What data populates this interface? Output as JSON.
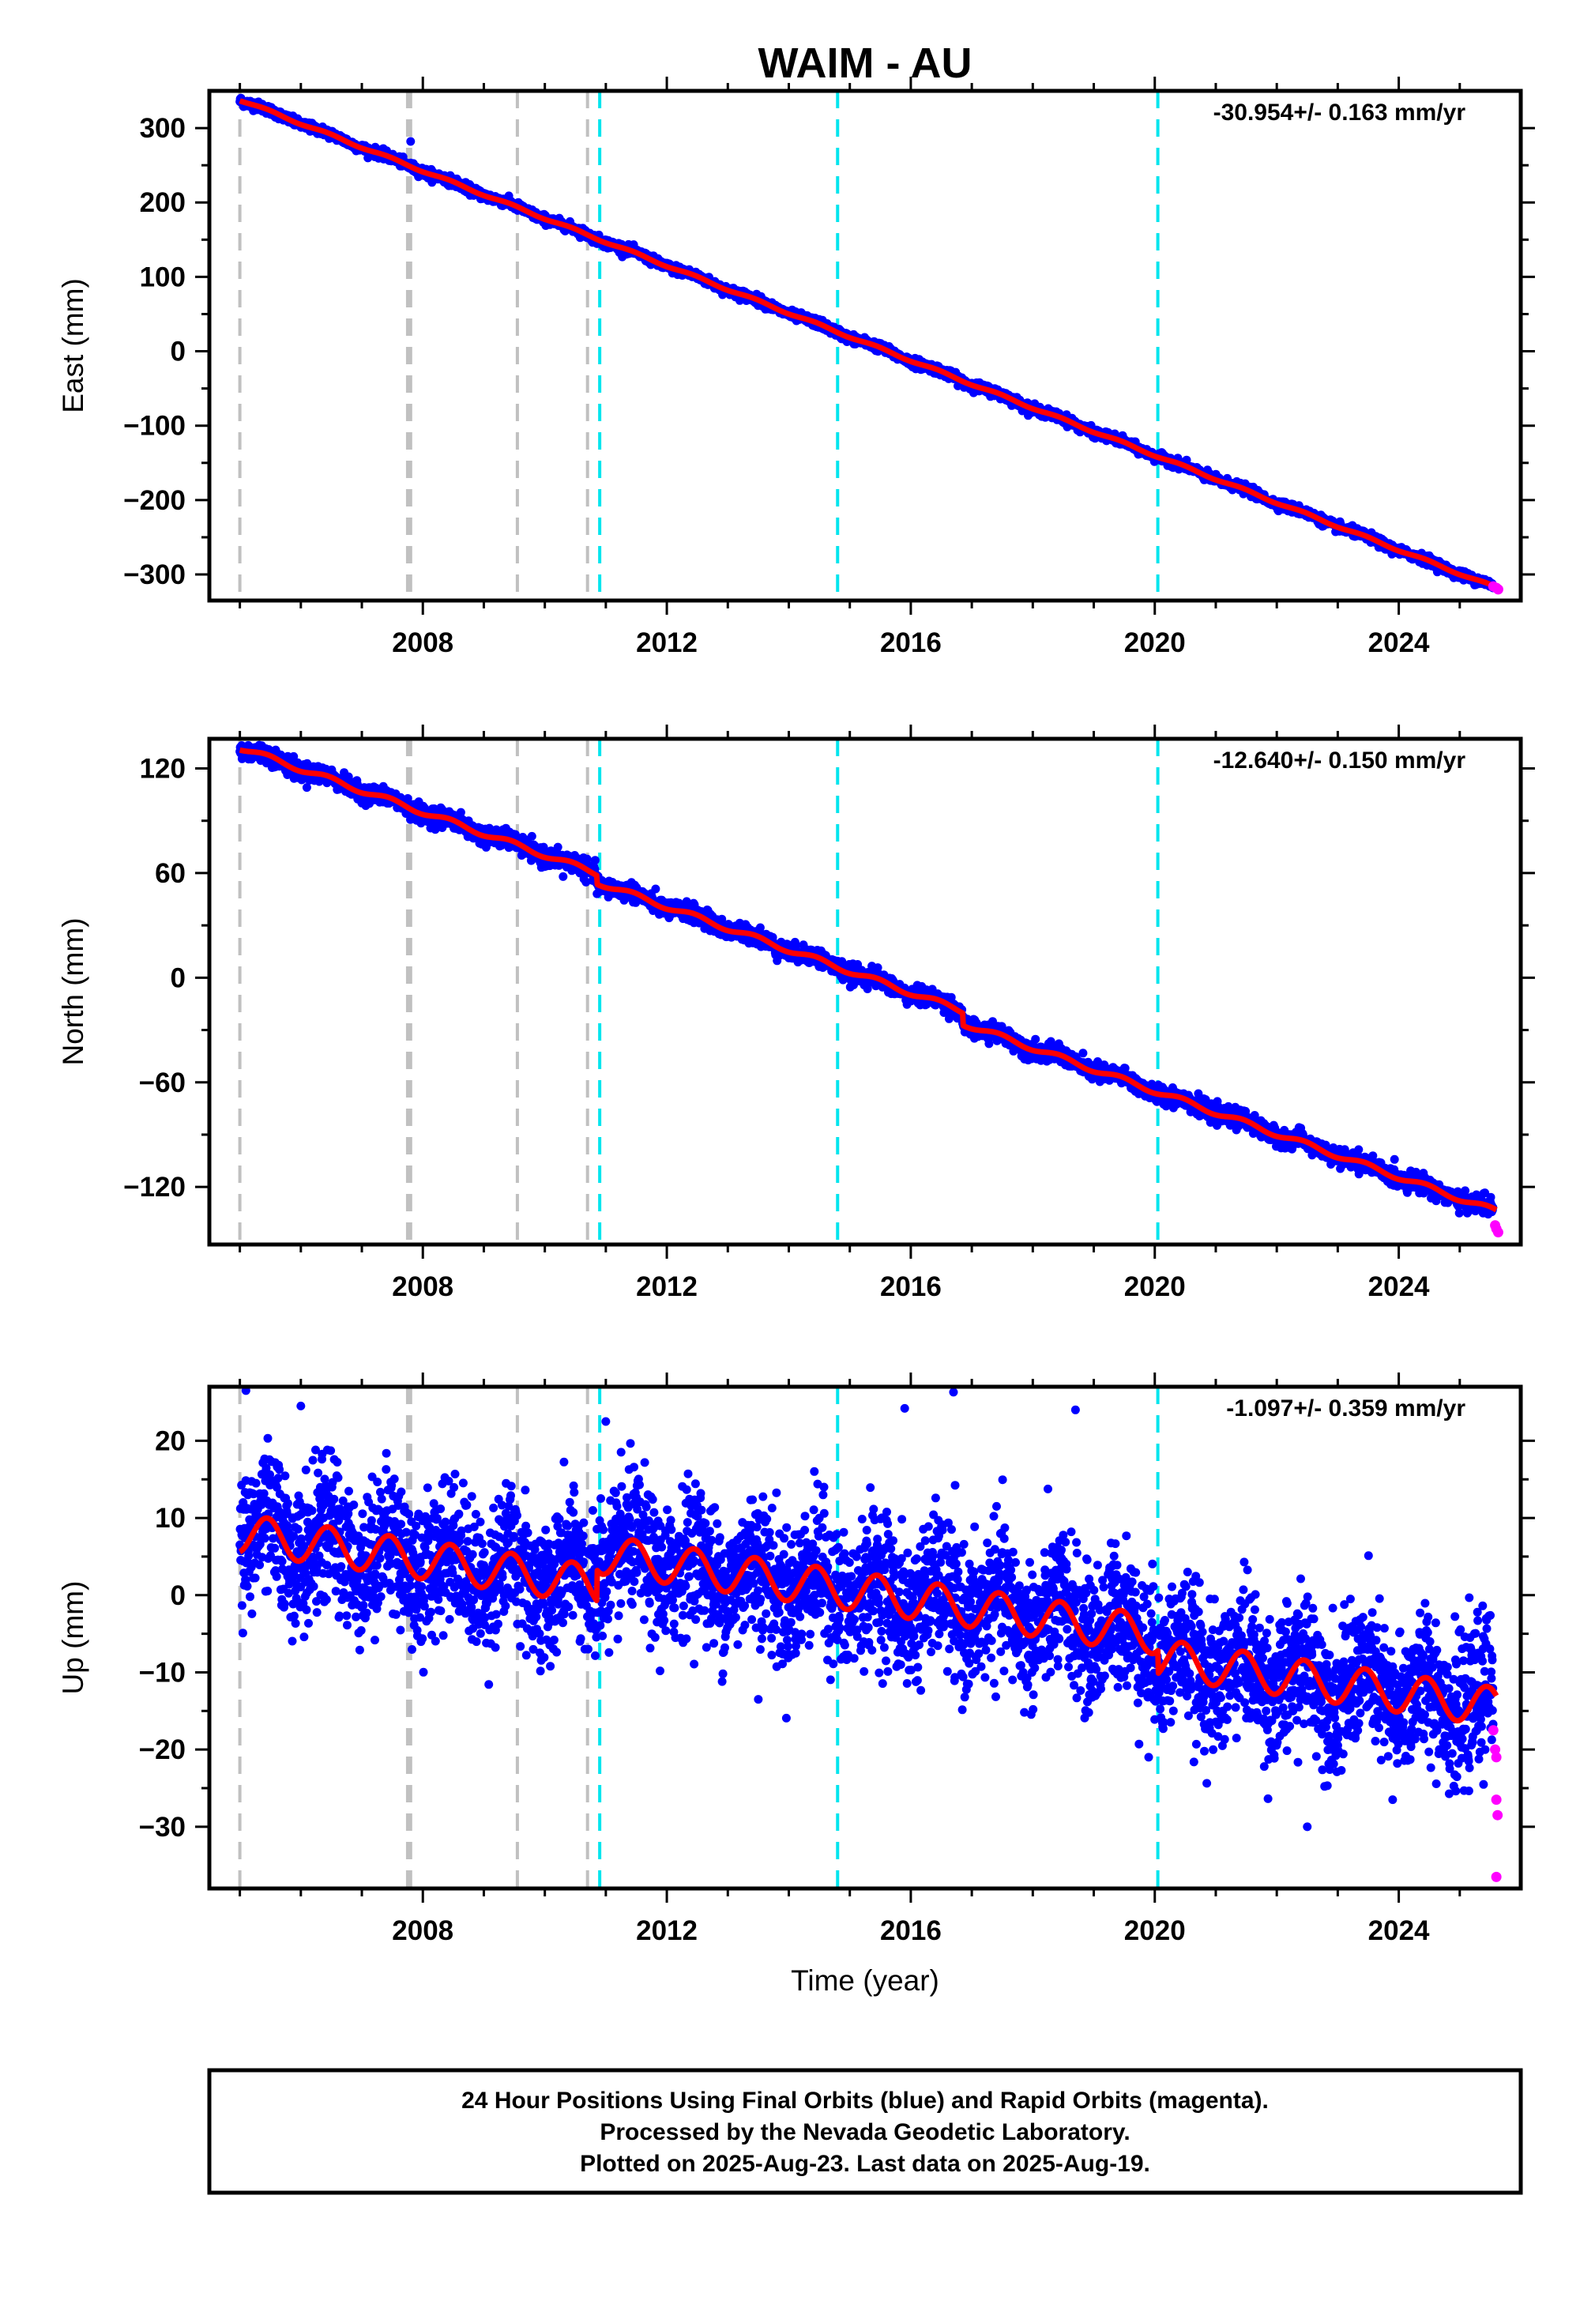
{
  "title": "WAIM - AU",
  "xlabel": "Time (year)",
  "footer_lines": [
    "24 Hour Positions Using Final Orbits (blue) and Rapid Orbits (magenta).",
    "Processed by the Nevada Geodetic Laboratory.",
    "Plotted on 2025-Aug-23. Last data on 2025-Aug-19."
  ],
  "colors": {
    "final_points": "#0000ff",
    "rapid_points": "#ff00ff",
    "model_line": "#ff0000",
    "equipment_change_lines": "#c0c0c0",
    "earthquake_lines": "#00e5ee"
  },
  "chart_data": [
    {
      "type": "scatter",
      "ylabel": "East (mm)",
      "rate": "-30.954+/- 0.163 mm/yr",
      "xlim": [
        2004.5,
        2026.0
      ],
      "ylim": [
        -335,
        350
      ],
      "x_ticks": [
        2008,
        2012,
        2016,
        2020,
        2024
      ],
      "y_ticks": [
        300,
        200,
        100,
        0,
        -100,
        -200,
        -300
      ],
      "y_tick_labels": [
        "300",
        "200",
        "100",
        "0",
        "−100",
        "−200",
        "−300"
      ],
      "trend": {
        "start": [
          2005.0,
          338
        ],
        "end": [
          2025.6,
          -318
        ]
      },
      "noise_mm": 3,
      "seasonal_mm": 1.5,
      "offsets": [],
      "outliers": [
        [
          2007.8,
          282
        ]
      ],
      "rapid_points": [
        [
          2025.55,
          -316
        ],
        [
          2025.6,
          -318
        ],
        [
          2025.63,
          -320
        ]
      ],
      "equipment_changes": [
        2005.0,
        2007.75,
        2007.8,
        2009.55,
        2010.7
      ],
      "earthquakes": [
        2010.9,
        2014.8,
        2020.05
      ],
      "grid": false,
      "legend": "none"
    },
    {
      "type": "scatter",
      "ylabel": "North (mm)",
      "rate": "-12.640+/- 0.150 mm/yr",
      "xlim": [
        2004.5,
        2026.0
      ],
      "ylim": [
        -153,
        137
      ],
      "x_ticks": [
        2008,
        2012,
        2016,
        2020,
        2024
      ],
      "y_ticks": [
        120,
        60,
        0,
        -60,
        -120
      ],
      "y_tick_labels": [
        "120",
        "60",
        "0",
        "−60",
        "−120"
      ],
      "trend": {
        "start": [
          2005.0,
          132
        ],
        "end": [
          2025.6,
          -134
        ]
      },
      "noise_mm": 2.5,
      "seasonal_mm": 1.5,
      "offsets": [
        [
          2010.85,
          -5
        ],
        [
          2016.85,
          -7
        ]
      ],
      "outliers": [
        [
          2010.3,
          58
        ],
        [
          2010.5,
          62
        ]
      ],
      "rapid_points": [
        [
          2025.58,
          -142
        ],
        [
          2025.6,
          -144
        ],
        [
          2025.63,
          -146
        ]
      ],
      "equipment_changes": [
        2005.0,
        2007.75,
        2007.8,
        2009.55,
        2010.7
      ],
      "earthquakes": [
        2010.9,
        2014.8,
        2020.05
      ],
      "grid": false,
      "legend": "none"
    },
    {
      "type": "scatter",
      "ylabel": "Up (mm)",
      "rate": "-1.097+/- 0.359 mm/yr",
      "xlim": [
        2004.5,
        2026.0
      ],
      "ylim": [
        -38,
        27
      ],
      "x_ticks": [
        2008,
        2012,
        2016,
        2020,
        2024
      ],
      "y_ticks": [
        20,
        10,
        0,
        -10,
        -20,
        -30
      ],
      "y_tick_labels": [
        "20",
        "10",
        "0",
        "−10",
        "−20",
        "−30"
      ],
      "trend": {
        "start": [
          2005.0,
          8
        ],
        "end": [
          2025.6,
          -14.5
        ]
      },
      "noise_mm": 4.5,
      "seasonal_mm": 2.5,
      "offsets": [
        [
          2010.85,
          4
        ],
        [
          2020.05,
          -3
        ]
      ],
      "outliers": [
        [
          2005.1,
          26.5
        ],
        [
          2006.0,
          24.5
        ],
        [
          2016.7,
          26.3
        ],
        [
          2015.9,
          24.2
        ],
        [
          2018.7,
          24.0
        ],
        [
          2011.0,
          22.5
        ],
        [
          2013.5,
          -13.5
        ],
        [
          2022.5,
          -30.0
        ],
        [
          2023.9,
          -26.5
        ],
        [
          2019.9,
          -21.0
        ]
      ],
      "rapid_points": [
        [
          2025.55,
          -17.5
        ],
        [
          2025.58,
          -20
        ],
        [
          2025.6,
          -21
        ],
        [
          2025.6,
          -26.5
        ],
        [
          2025.62,
          -28.5
        ],
        [
          2025.6,
          -36.5
        ]
      ],
      "equipment_changes": [
        2005.0,
        2007.75,
        2007.8,
        2009.55,
        2010.7
      ],
      "earthquakes": [
        2010.9,
        2014.8,
        2020.05
      ],
      "grid": false,
      "legend": "none"
    }
  ]
}
